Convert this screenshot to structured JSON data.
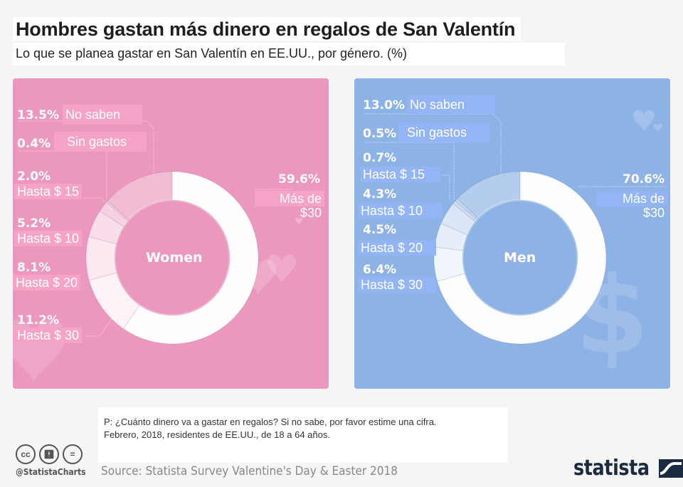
{
  "header": {
    "title": "Hombres gastan más dinero en regalos de San Valentín",
    "subtitle": "Lo que se planea gastar en San Valentín en EE.UU., por género. (%)"
  },
  "colors": {
    "women_bg": "#ec97be",
    "men_bg": "#8db2e6",
    "women_highlight": "#f7a3c8",
    "men_highlight": "#93b4f5"
  },
  "chart_data": [
    {
      "type": "pie",
      "variant": "donut",
      "title": "Women",
      "categories": [
        "Más de $30",
        "Hasta $ 30",
        "Hasta $ 20",
        "Hasta $ 10",
        "Hasta $ 15",
        "Sin gastos",
        "No saben"
      ],
      "values": [
        59.6,
        11.2,
        8.1,
        5.2,
        2.0,
        0.4,
        13.5
      ],
      "labels": [
        {
          "pct": "59.6%",
          "text": "Más de $30",
          "line1": "Más de",
          "line2": "$30"
        },
        {
          "pct": "11.2%",
          "text": "Hasta $ 30"
        },
        {
          "pct": "8.1%",
          "text": "Hasta $ 20"
        },
        {
          "pct": "5.2%",
          "text": "Hasta $ 10"
        },
        {
          "pct": "2.0%",
          "text": "Hasta $ 15"
        },
        {
          "pct": "0.4%",
          "text": "Sin gastos"
        },
        {
          "pct": "13.5%",
          "text": "No saben"
        }
      ],
      "unit": "%"
    },
    {
      "type": "pie",
      "variant": "donut",
      "title": "Men",
      "categories": [
        "Más de $30",
        "Hasta $ 30",
        "Hasta $ 20",
        "Hasta $ 10",
        "Hasta $ 15",
        "Sin gastos",
        "No saben"
      ],
      "values": [
        70.6,
        6.4,
        4.5,
        4.3,
        0.7,
        0.5,
        13.0
      ],
      "labels": [
        {
          "pct": "70.6%",
          "text": "Más de $30",
          "line1": "Más de",
          "line2": "$30"
        },
        {
          "pct": "6.4%",
          "text": "Hasta $ 30"
        },
        {
          "pct": "4.5%",
          "text": "Hasta $ 20"
        },
        {
          "pct": "4.3%",
          "text": "Hasta $ 10"
        },
        {
          "pct": "0.7%",
          "text": "Hasta $ 15"
        },
        {
          "pct": "0.5%",
          "text": "Sin gastos"
        },
        {
          "pct": "13.0%",
          "text": "No saben"
        }
      ],
      "unit": "%"
    }
  ],
  "footer": {
    "note_line1": "P: ¿Cuánto dinero va a gastar en regalos?  Si no sabe, por favor estime una cifra.",
    "note_line2": "Febrero, 2018, residentes de EE.UU., de 18 a 64 años.",
    "source": "Source: Statista Survey Valentine's Day & Easter 2018",
    "handle": "@StatistaCharts",
    "logo": "statista",
    "cc_icons": [
      "cc",
      "by",
      "nd"
    ]
  }
}
